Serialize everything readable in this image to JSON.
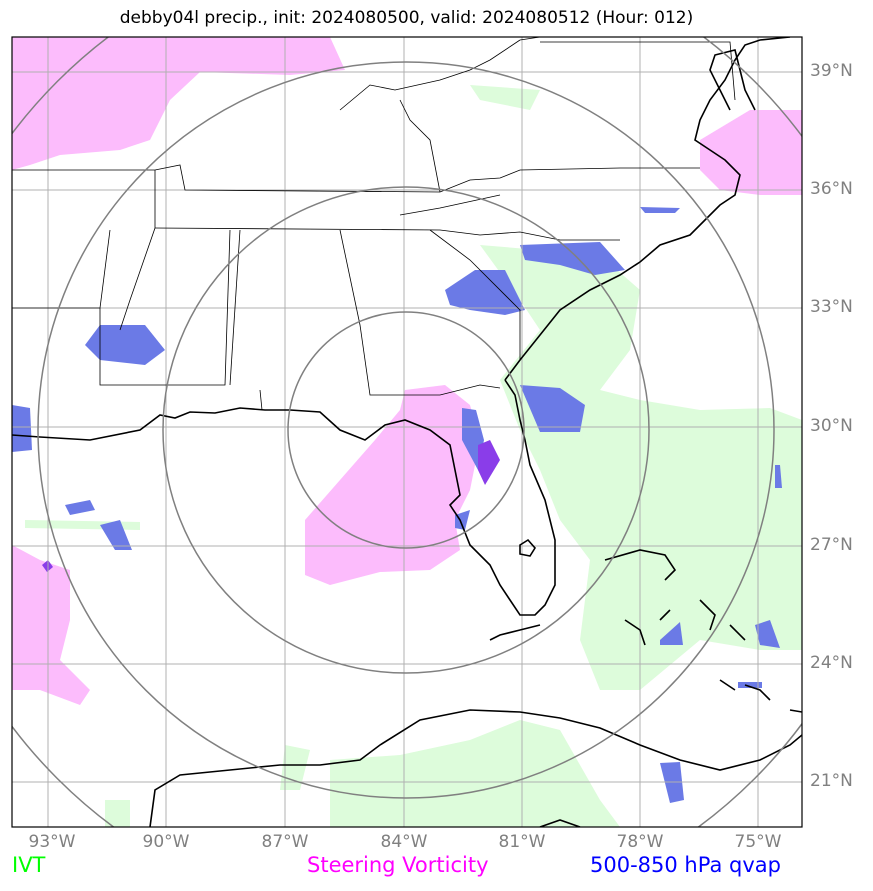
{
  "title": "debby04l precip., init: 2024080500, valid: 2024080512 (Hour: 012)",
  "lat_labels": [
    "39°N",
    "36°N",
    "33°N",
    "30°N",
    "27°N",
    "24°N",
    "21°N"
  ],
  "lon_labels": [
    "93°W",
    "90°W",
    "87°W",
    "84°W",
    "81°W",
    "78°W",
    "75°W"
  ],
  "legend": {
    "ivt": {
      "label": "IVT",
      "color": "#00ff00"
    },
    "vorticity": {
      "label": "Steering Vorticity",
      "color": "#ff00ff"
    },
    "qvap": {
      "label": "500-850 hPa qvap",
      "color": "#0000ff"
    }
  },
  "colors": {
    "ivt_fill": "#ddfcdb",
    "vorticity_fill": "#fcbcfc",
    "qvap_fill": "#6b7ae6",
    "overlap_fill": "#8a3de9",
    "range_rings": "#808080",
    "gridlines": "#b0b0b0",
    "coastline": "#000000"
  },
  "map": {
    "extent_lon": [
      -94,
      -74
    ],
    "extent_lat": [
      19.5,
      39.75
    ],
    "storm_center": {
      "lon": -84,
      "lat": 30
    },
    "range_rings": 4
  }
}
